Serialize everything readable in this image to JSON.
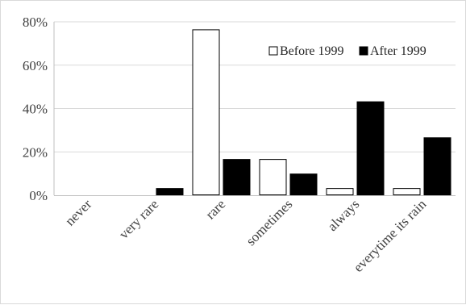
{
  "chart_data": {
    "type": "bar",
    "categories": [
      "never",
      "very rare",
      "rare",
      "sometimes",
      "always",
      "everytime its rain"
    ],
    "series": [
      {
        "name": "Before 1999",
        "values": [
          0,
          0,
          76.5,
          16.7,
          3.3,
          3.3
        ],
        "fill": "#ffffff",
        "stroke": "#000000"
      },
      {
        "name": "After 1999",
        "values": [
          0,
          3.3,
          16.7,
          10.0,
          43.3,
          26.7
        ],
        "fill": "#000000",
        "stroke": "#000000"
      }
    ],
    "ylim": [
      0,
      80
    ],
    "yticks": [
      "0%",
      "20%",
      "40%",
      "60%",
      "80%"
    ],
    "ytick_values": [
      0,
      20,
      40,
      60,
      80
    ],
    "title": "",
    "xlabel": "",
    "ylabel": "",
    "legend_position": "top-right",
    "grid": "horizontal",
    "colors": {
      "grid": "#d9d9d9",
      "axis": "#bfbfbf",
      "text": "#404040"
    }
  }
}
